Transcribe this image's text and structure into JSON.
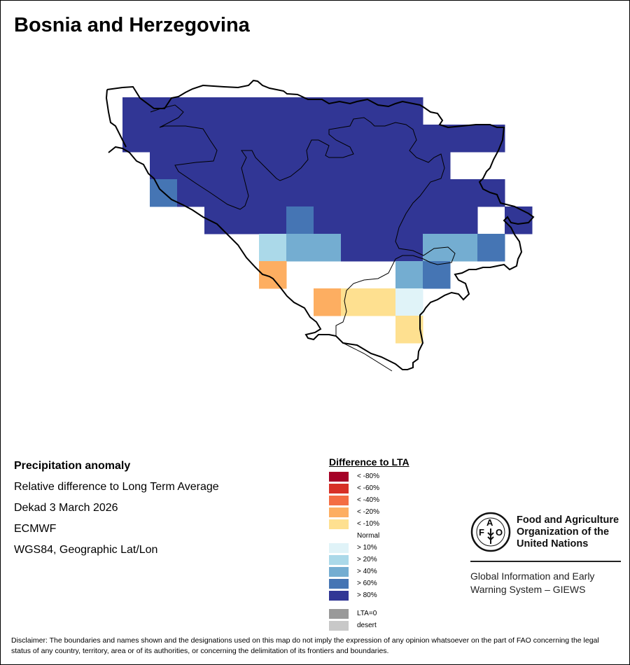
{
  "title": "Bosnia and Herzegovina",
  "info": {
    "heading": "Precipitation anomaly",
    "subtitle": "Relative difference to Long Term Average",
    "period": "Dekad 3 March 2026",
    "source": "ECMWF",
    "projection": "WGS84, Geographic Lat/Lon"
  },
  "legend": {
    "title": "Difference to LTA",
    "items": [
      {
        "label": "< -80%",
        "color": "#a50026"
      },
      {
        "label": "< -60%",
        "color": "#d73027"
      },
      {
        "label": "< -40%",
        "color": "#f46d43"
      },
      {
        "label": "< -20%",
        "color": "#fdae61"
      },
      {
        "label": "< -10%",
        "color": "#fee090"
      },
      {
        "label": "Normal",
        "color": "#ffffff"
      },
      {
        "label": "> 10%",
        "color": "#e0f3f8"
      },
      {
        "label": "> 20%",
        "color": "#abd9e9"
      },
      {
        "label": "> 40%",
        "color": "#74add1"
      },
      {
        "label": "> 60%",
        "color": "#4575b4"
      },
      {
        "label": "> 80%",
        "color": "#313695"
      }
    ],
    "extra": [
      {
        "label": "LTA=0",
        "color": "#999999"
      },
      {
        "label": "desert",
        "color": "#c8c8c8"
      }
    ]
  },
  "grid": {
    "class_colors": {
      "A": "#313695",
      "B": "#4575b4",
      "C": "#74add1",
      "D": "#abd9e9",
      "E": "#e0f3f8",
      "F": "#fee090",
      "G": "#fdae61"
    },
    "rows": [
      "AAAAAAAAAAA.....",
      "AAAAAAAAAAAAAA..",
      ".AAAAAAAAAAA....",
      ".BAAAAAAAAAAAA..",
      "...AAABAAAAAA.A.",
      ".....DCCAAACCB..",
      ".....G....CB....",
      ".......GFFE.....",
      "..........F....."
    ]
  },
  "fao": {
    "org": "Food and Agriculture Organization of the United Nations",
    "giews": "Global Information and Early Warning System – GIEWS",
    "logo_text": "FAO FIAT PANIS"
  },
  "disclaimer": "Disclaimer: The boundaries and names shown and the designations used on this map do not imply the expression of any opinion whatsoever on the part of FAO concerning the legal status of any country, territory, area or of its authorities, or concerning the delimitation of its frontiers and boundaries."
}
